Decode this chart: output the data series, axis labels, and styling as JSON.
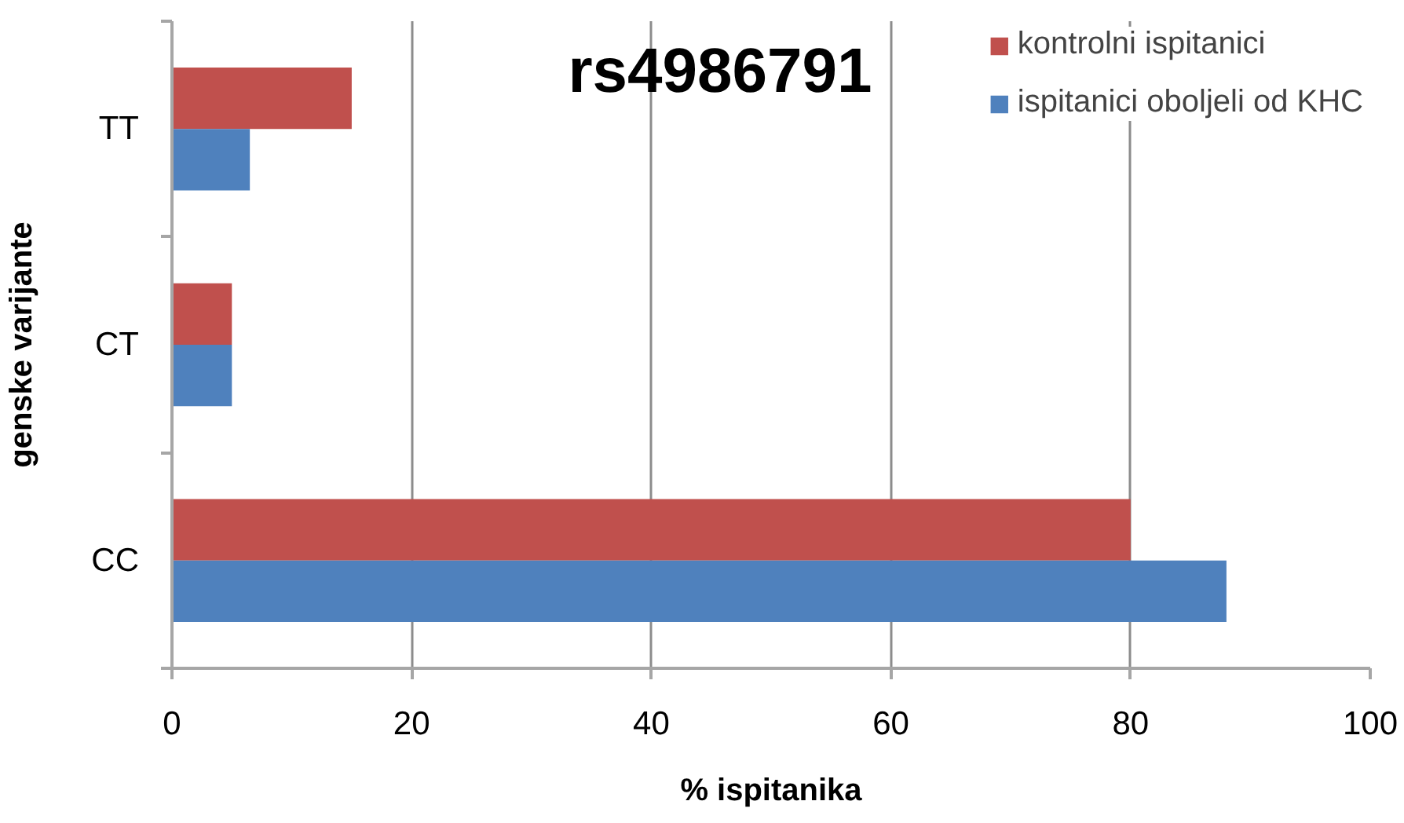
{
  "chart_data": {
    "type": "bar",
    "orientation": "horizontal",
    "title": "rs4986791",
    "xlabel": "% ispitanika",
    "ylabel": "genske varijante",
    "categories": [
      "TT",
      "CT",
      "CC"
    ],
    "series": [
      {
        "name": "kontrolni ispitanici",
        "color": "#c0504d",
        "values": [
          15,
          5,
          80
        ]
      },
      {
        "name": "ispitanici oboljeli od KHC",
        "color": "#4f81bd",
        "values": [
          6.5,
          5,
          88
        ]
      }
    ],
    "xlim": [
      0,
      100
    ],
    "xticks": [
      0,
      20,
      40,
      60,
      80,
      100
    ],
    "grid": "x",
    "legend": "top right"
  }
}
